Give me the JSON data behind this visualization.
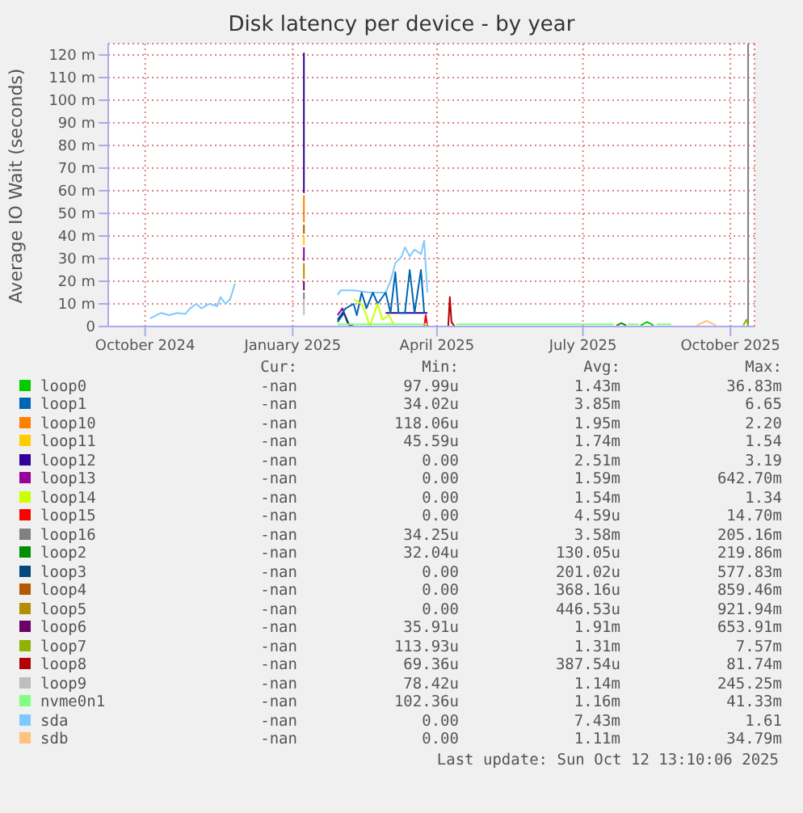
{
  "chart_data": {
    "type": "line",
    "title": "Disk latency per device - by year",
    "ylabel": "Average IO Wait (seconds)",
    "xlim": [
      "2024-09-08",
      "2025-10-16"
    ],
    "xticks": [
      {
        "value": "2024-10-01",
        "label": "October 2024"
      },
      {
        "value": "2025-01-01",
        "label": "January 2025"
      },
      {
        "value": "2025-04-01",
        "label": "April 2025"
      },
      {
        "value": "2025-07-01",
        "label": "July 2025"
      },
      {
        "value": "2025-10-01",
        "label": "October 2025"
      }
    ],
    "ylim": [
      0,
      125
    ],
    "yticks": [
      {
        "value": 0,
        "label": "0"
      },
      {
        "value": 10,
        "label": "10 m"
      },
      {
        "value": 20,
        "label": "20 m"
      },
      {
        "value": 30,
        "label": "30 m"
      },
      {
        "value": 40,
        "label": "40 m"
      },
      {
        "value": 50,
        "label": "50 m"
      },
      {
        "value": 60,
        "label": "60 m"
      },
      {
        "value": 70,
        "label": "70 m"
      },
      {
        "value": 80,
        "label": "80 m"
      },
      {
        "value": 90,
        "label": "90 m"
      },
      {
        "value": 100,
        "label": "100 m"
      },
      {
        "value": 110,
        "label": "110 m"
      },
      {
        "value": 120,
        "label": "120 m"
      }
    ],
    "grid": true,
    "legend": "bottom",
    "marker": "none",
    "line_style": "solid",
    "ref_lines": [
      {
        "axis": "x",
        "value": "2025-10-12",
        "color": "#808080"
      }
    ],
    "series": [
      {
        "name": "loop0",
        "color": "#00cc00",
        "x": [
          "2025-08-06",
          "2025-08-10",
          "2025-08-14"
        ],
        "values": [
          0.5,
          2,
          0.5
        ]
      },
      {
        "name": "loop1",
        "color": "#0066b3",
        "x": [
          "2025-01-29",
          "2025-02-03",
          "2025-02-08",
          "2025-02-10",
          "2025-02-13",
          "2025-02-16",
          "2025-02-20",
          "2025-02-23",
          "2025-02-28",
          "2025-03-03",
          "2025-03-06",
          "2025-03-08",
          "2025-03-12",
          "2025-03-15",
          "2025-03-18",
          "2025-03-22",
          "2025-03-24"
        ],
        "values": [
          3,
          8,
          10,
          5,
          15,
          8,
          15,
          10,
          15,
          6,
          24,
          6,
          6,
          25,
          6,
          25,
          6
        ]
      },
      {
        "name": "loop10",
        "color": "#ff8000",
        "x": [
          "2025-01-08",
          "2025-01-08"
        ],
        "values": [
          58,
          46
        ]
      },
      {
        "name": "loop11",
        "color": "#ffcc00",
        "x": [
          "2025-01-08",
          "2025-01-08"
        ],
        "values": [
          40,
          36
        ]
      },
      {
        "name": "loop12",
        "color": "#330099",
        "x": [
          "2025-01-08",
          "2025-01-08",
          "2025-01-09",
          "2025-02-28",
          "2025-03-26"
        ],
        "values": [
          121,
          59,
          null,
          6,
          6
        ]
      },
      {
        "name": "loop13",
        "color": "#990099",
        "x": [
          "2025-01-08",
          "2025-01-08",
          "2025-01-09",
          "2025-01-29",
          "2025-02-01",
          "2025-02-04",
          "2025-02-06"
        ],
        "values": [
          35,
          29,
          null,
          5,
          8,
          2,
          0
        ]
      },
      {
        "name": "loop14",
        "color": "#ccff00",
        "x": [
          "2025-02-08",
          "2025-02-13",
          "2025-02-16",
          "2025-02-18",
          "2025-02-23",
          "2025-02-26",
          "2025-03-02",
          "2025-03-05"
        ],
        "values": [
          12,
          10,
          5,
          0,
          10,
          3,
          5,
          1
        ]
      },
      {
        "name": "loop15",
        "color": "#ff0000",
        "x": [
          "2025-03-24",
          "2025-03-25",
          "2025-03-26"
        ],
        "values": [
          0,
          5,
          0
        ]
      },
      {
        "name": "loop16",
        "color": "#808080",
        "x": [
          "2025-01-08",
          "2025-01-08"
        ],
        "values": [
          15,
          12
        ]
      },
      {
        "name": "loop2",
        "color": "#008f00",
        "x": [
          "2025-07-22",
          "2025-07-25",
          "2025-07-28"
        ],
        "values": [
          0.5,
          1.5,
          0.5
        ]
      },
      {
        "name": "loop3",
        "color": "#00487d",
        "x": [
          "2025-01-29",
          "2025-02-02",
          "2025-02-05",
          "2025-02-08"
        ],
        "values": [
          2,
          6,
          1,
          0
        ]
      },
      {
        "name": "loop4",
        "color": "#b35a00",
        "x": [
          "2025-01-08",
          "2025-01-08"
        ],
        "values": [
          45,
          41
        ]
      },
      {
        "name": "loop5",
        "color": "#b38f00",
        "x": [
          "2025-01-08",
          "2025-01-08"
        ],
        "values": [
          28,
          21
        ]
      },
      {
        "name": "loop6",
        "color": "#6b006b",
        "x": [
          "2025-01-08",
          "2025-01-08"
        ],
        "values": [
          20,
          16
        ]
      },
      {
        "name": "loop7",
        "color": "#8fb300",
        "x": [
          "2025-10-09",
          "2025-10-11",
          "2025-10-12"
        ],
        "values": [
          0.5,
          3,
          0.5
        ]
      },
      {
        "name": "loop8",
        "color": "#b30000",
        "x": [
          "2025-04-08",
          "2025-04-09",
          "2025-04-10",
          "2025-04-12"
        ],
        "values": [
          0,
          13,
          2,
          0
        ]
      },
      {
        "name": "loop9",
        "color": "#bebebe",
        "x": [
          "2025-01-08",
          "2025-01-08"
        ],
        "values": [
          12,
          5
        ]
      },
      {
        "name": "nvme0n1",
        "color": "#80ff80",
        "x": [
          "2025-01-29",
          "2025-03-26",
          "2025-03-27",
          "2025-04-13",
          "2025-05-20",
          "2025-06-15",
          "2025-07-20",
          "2025-07-24",
          "2025-07-29",
          "2025-08-05",
          "2025-08-08",
          "2025-08-16",
          "2025-08-25"
        ],
        "values": [
          1,
          1,
          null,
          1,
          1,
          1,
          1,
          null,
          1,
          1,
          null,
          1,
          1
        ]
      },
      {
        "name": "sda",
        "color": "#80c9ff",
        "x": [
          "2024-10-04",
          "2024-10-11",
          "2024-10-16",
          "2024-10-21",
          "2024-10-26",
          "2024-10-29",
          "2024-11-02",
          "2024-11-05",
          "2024-11-10",
          "2024-11-15",
          "2024-11-17",
          "2024-11-20",
          "2024-11-23",
          "2024-11-26",
          "2024-11-27",
          "2025-01-29",
          "2025-01-31",
          "2025-02-08",
          "2025-02-18",
          "2025-02-28",
          "2025-03-03",
          "2025-03-06",
          "2025-03-10",
          "2025-03-12",
          "2025-03-15",
          "2025-03-18",
          "2025-03-22",
          "2025-03-24",
          "2025-03-26"
        ],
        "values": [
          3.5,
          6,
          5,
          6,
          5.5,
          8,
          10,
          8,
          10,
          9,
          13,
          10,
          12,
          19,
          null,
          14,
          16,
          16,
          15,
          15,
          20,
          28,
          31,
          35,
          31,
          34,
          32,
          38,
          15
        ]
      },
      {
        "name": "sdb",
        "color": "#ffc080",
        "x": [
          "2025-09-10",
          "2025-09-16",
          "2025-09-22"
        ],
        "values": [
          0.5,
          2.5,
          0.5
        ]
      }
    ],
    "annotations": [
      "Cur:",
      "Min:",
      "Avg:",
      "Max:",
      "-nan",
      "97.99u",
      "1.43m",
      "36.83m",
      "-nan",
      "34.02u",
      "3.85m",
      "6.65",
      "-nan",
      "118.06u",
      "1.95m",
      "2.20",
      "-nan",
      "45.59u",
      "1.74m",
      "1.54",
      "-nan",
      "0.00",
      "2.51m",
      "3.19",
      "-nan",
      "0.00",
      "1.59m",
      "642.70m",
      "-nan",
      "0.00",
      "1.54m",
      "1.34",
      "-nan",
      "0.00",
      "4.59u",
      "14.70m",
      "-nan",
      "34.25u",
      "3.58m",
      "205.16m",
      "-nan",
      "32.04u",
      "130.05u",
      "219.86m",
      "-nan",
      "0.00",
      "201.02u",
      "577.83m",
      "-nan",
      "0.00",
      "368.16u",
      "859.46m",
      "-nan",
      "0.00",
      "446.53u",
      "921.94m",
      "-nan",
      "35.91u",
      "1.91m",
      "653.91m",
      "-nan",
      "113.93u",
      "1.31m",
      "7.57m",
      "-nan",
      "69.36u",
      "387.54u",
      "81.74m",
      "-nan",
      "78.42u",
      "1.14m",
      "245.25m",
      "-nan",
      "102.36u",
      "1.16m",
      "41.33m",
      "-nan",
      "0.00",
      "7.43m",
      "1.61",
      "-nan",
      "0.00",
      "1.11m",
      "34.79m",
      "Last update: Sun Oct 12 13:10:06 2025"
    ]
  }
}
